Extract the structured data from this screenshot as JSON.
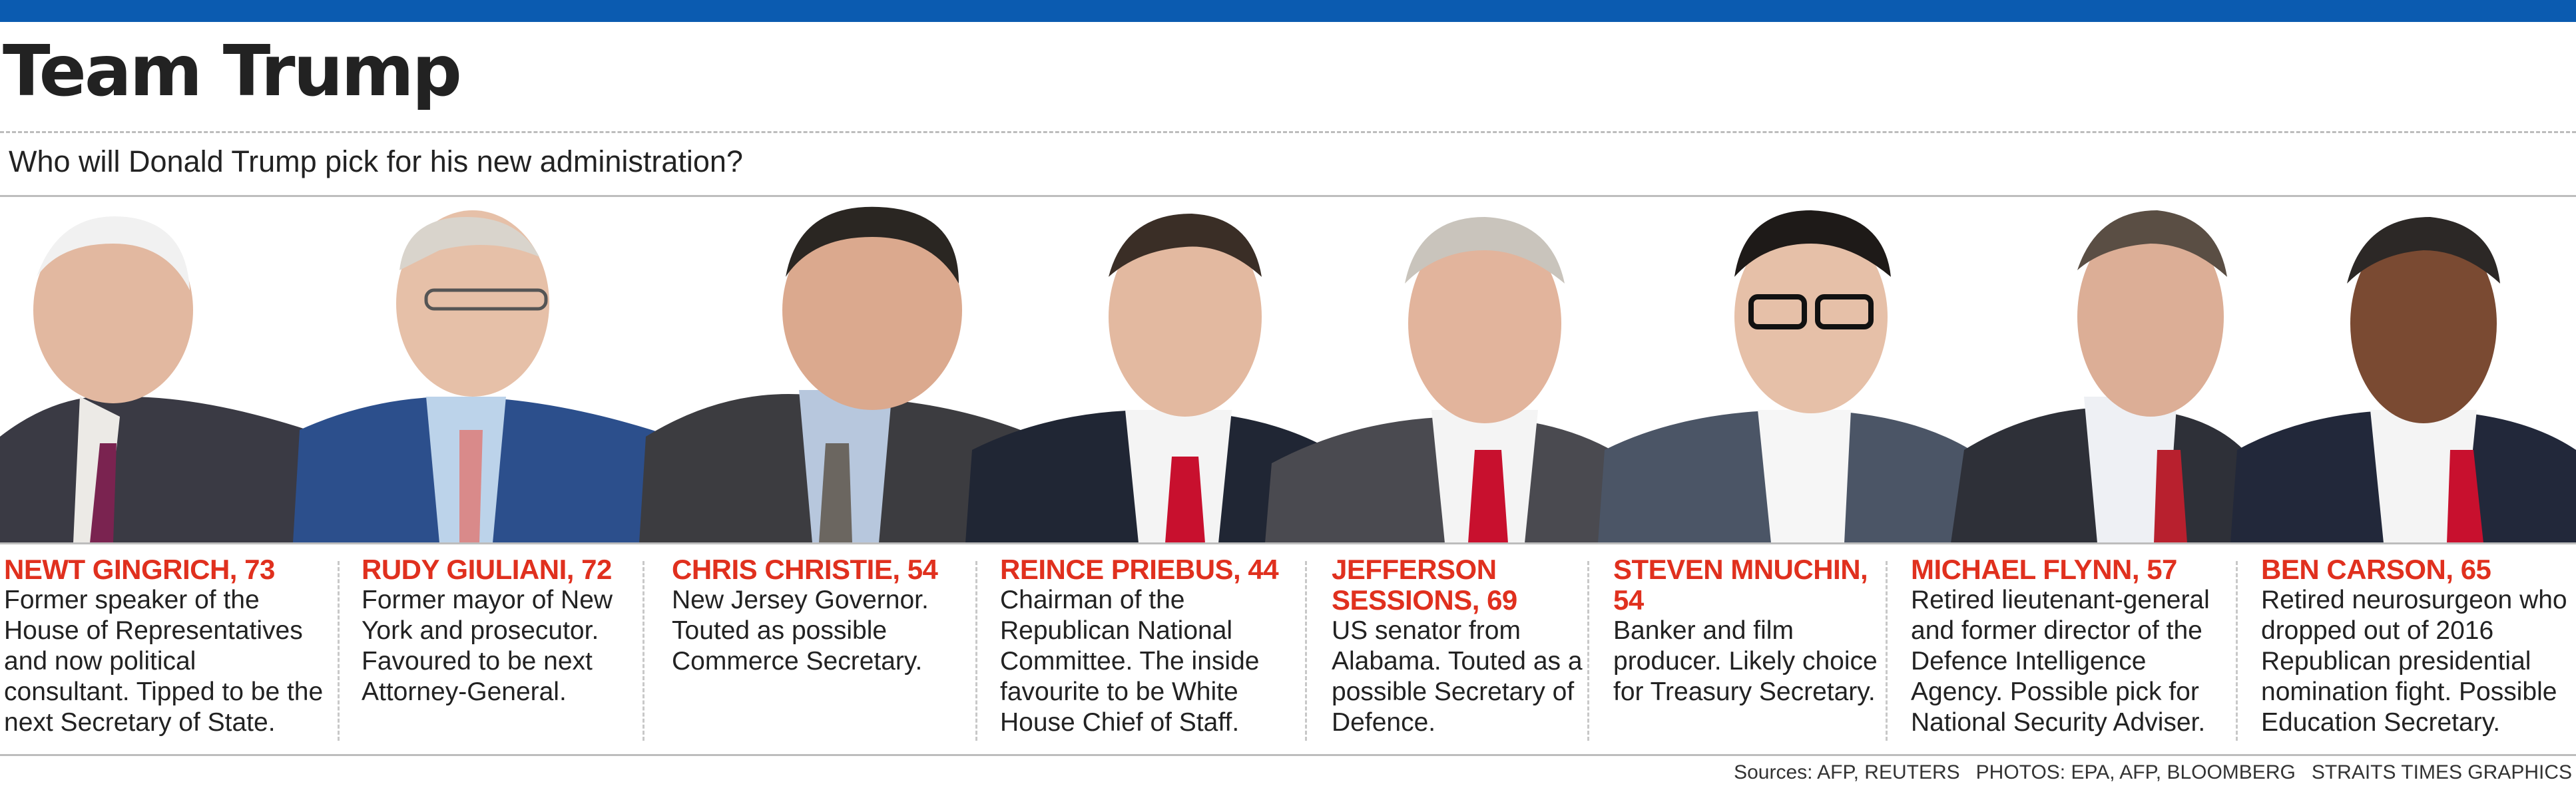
{
  "header": {
    "title": "Team Trump",
    "subtitle": "Who will Donald Trump pick for his new administration?",
    "accent_color": "#0b5bb0"
  },
  "people": [
    {
      "name": "NEWT GINGRICH, 73",
      "desc": " Former speaker of the House of Representatives and now political consultant. Tipped to be the next Secretary of State.",
      "tie_color": "#7a2350",
      "suit_color": "#3a3a44"
    },
    {
      "name": "RUDY GIULIANI, 72",
      "desc": "Former mayor of New York and prosecutor. Favoured to be next Attorney-General.",
      "tie_color": "#d98a8a",
      "suit_color": "#2c4f8c"
    },
    {
      "name": "CHRIS CHRISTIE, 54",
      "desc": "New Jersey Governor. Touted as possible Commerce Secretary.",
      "tie_color": "#6b6660",
      "suit_color": "#3c3c40"
    },
    {
      "name": "REINCE PRIEBUS, 44",
      "desc": "Chairman of the Republican National Committee. The inside favourite to be White House Chief of Staff.",
      "tie_color": "#c8102e",
      "suit_color": "#202634"
    },
    {
      "name": "JEFFERSON SESSIONS, 69",
      "desc": "US senator from Alabama. Touted as a possible Secretary of Defence.",
      "tie_color": "#c8102e",
      "suit_color": "#4a4a50"
    },
    {
      "name": "STEVEN MNUCHIN, 54",
      "desc": "Banker and film producer. Likely choice for Treasury Secretary.",
      "tie_color": "#ffffff",
      "suit_color": "#4b5566"
    },
    {
      "name": "MICHAEL FLYNN, 57",
      "desc": "Retired lieutenant-general and former director of the Defence Intelligence Agency. Possible pick for National Security Adviser.",
      "tie_color": "#b8202e",
      "suit_color": "#2e3038"
    },
    {
      "name": "BEN CARSON, 65",
      "desc": "Retired neurosurgeon who dropped out of 2016 Republican presidential nomination fight. Possible Education Secretary.",
      "tie_color": "#c8102e",
      "suit_color": "#22283a"
    }
  ],
  "footer": {
    "sources": "Sources: AFP, REUTERS",
    "photos": "PHOTOS: EPA, AFP, BLOOMBERG",
    "graphics": "STRAITS TIMES GRAPHICS"
  }
}
